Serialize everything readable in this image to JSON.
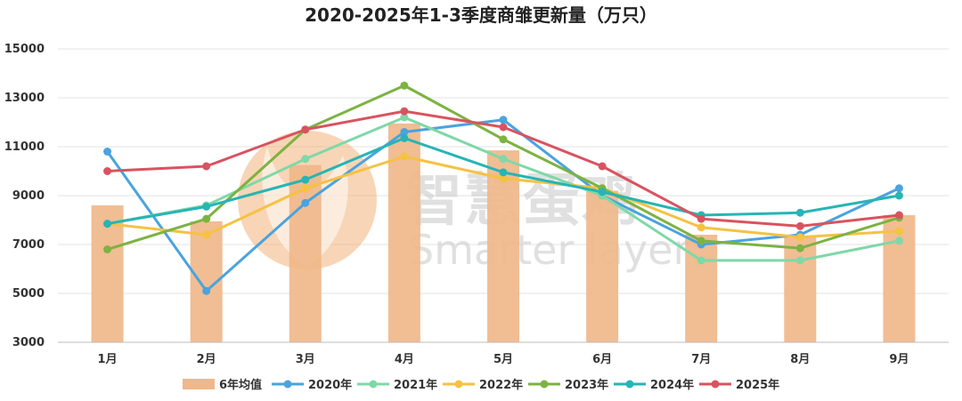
{
  "chart_data": {
    "type": "bar+line",
    "title": "2020-2025年1-3季度商雏更新量（万只）",
    "xlabel": "",
    "ylabel": "",
    "categories": [
      "1月",
      "2月",
      "3月",
      "4月",
      "5月",
      "6月",
      "7月",
      "8月",
      "9月"
    ],
    "ylim": [
      3000,
      15000
    ],
    "yticks": [
      3000,
      5000,
      7000,
      9000,
      11000,
      13000,
      15000
    ],
    "grid": true,
    "legend_position": "bottom",
    "bar_series": {
      "name": "6年均值",
      "color": "#f0b78a",
      "values": [
        8600,
        7950,
        10250,
        11950,
        10850,
        9200,
        7400,
        7300,
        8200
      ]
    },
    "series": [
      {
        "name": "2020年",
        "color": "#4aa3df",
        "values": [
          10800,
          5100,
          8700,
          11600,
          12100,
          9000,
          7000,
          7400,
          9300
        ]
      },
      {
        "name": "2021年",
        "color": "#7fd8a8",
        "values": [
          7850,
          8600,
          10500,
          12200,
          10500,
          9000,
          6350,
          6350,
          7150
        ]
      },
      {
        "name": "2022年",
        "color": "#f5c242",
        "values": [
          7850,
          7400,
          9300,
          10600,
          9700,
          9300,
          7700,
          7300,
          7550
        ]
      },
      {
        "name": "2023年",
        "color": "#7cb342",
        "values": [
          6800,
          8050,
          11700,
          13500,
          11300,
          9300,
          7150,
          6850,
          8100
        ]
      },
      {
        "name": "2024年",
        "color": "#26b5b5",
        "values": [
          7850,
          8550,
          9650,
          11350,
          9950,
          9150,
          8200,
          8300,
          9000
        ]
      },
      {
        "name": "2025年",
        "color": "#d9535f",
        "values": [
          10000,
          10200,
          11700,
          12450,
          11800,
          10200,
          8050,
          7750,
          8200
        ]
      }
    ]
  },
  "watermark": {
    "cn": "智慧蛋鸡",
    "en": "Smarter layer",
    "color": "#f2b27a"
  }
}
